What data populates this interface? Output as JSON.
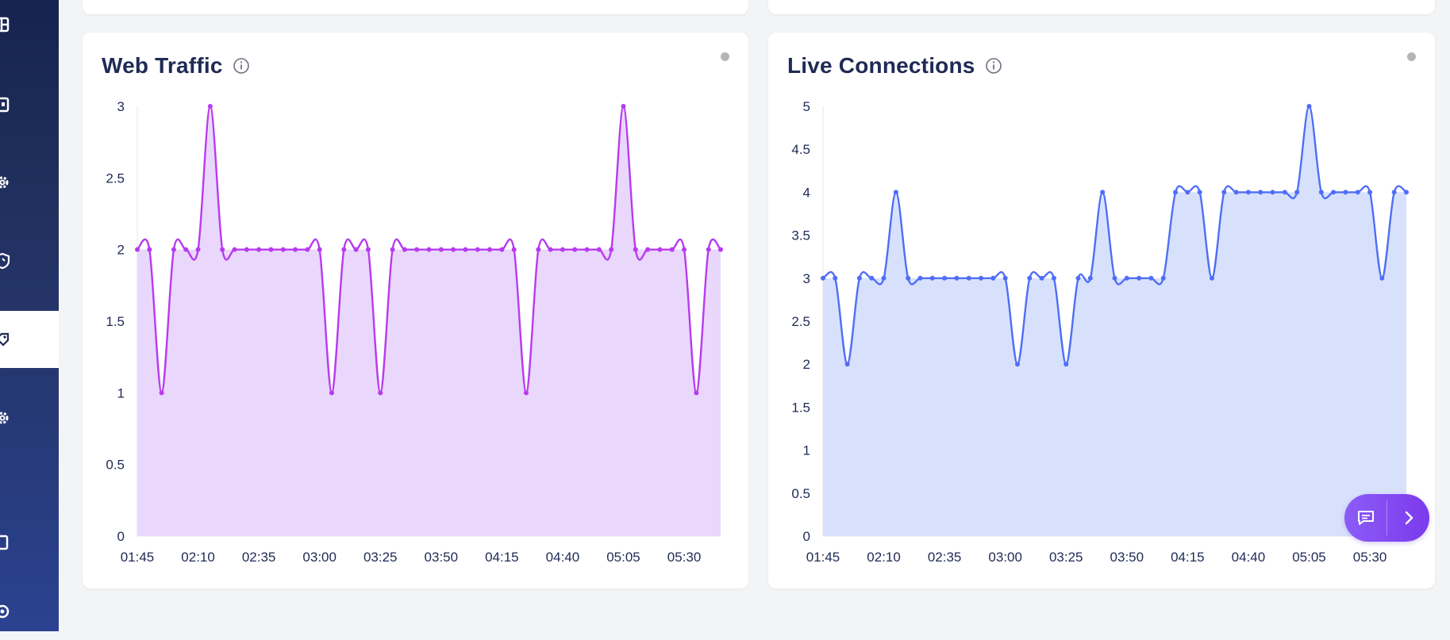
{
  "sidebar": {
    "items": [
      {
        "icon": "grid-icon",
        "active": false
      },
      {
        "icon": "building-icon",
        "active": false
      },
      {
        "icon": "gear-icon",
        "active": false
      },
      {
        "icon": "shield-icon",
        "active": false
      },
      {
        "icon": "tag-icon",
        "active": true
      },
      {
        "icon": "settings-icon",
        "active": false
      },
      {
        "icon": "device-icon",
        "active": false
      },
      {
        "icon": "support-icon",
        "active": false
      }
    ]
  },
  "cards": [
    {
      "id": "web-traffic",
      "title": "Web Traffic",
      "info_icon": "info-icon",
      "chart_data": {
        "type": "area",
        "title": "Web Traffic",
        "xlabel": "",
        "ylabel": "",
        "color": "#b73bef",
        "fill": "#ead7fc",
        "ylim": [
          0,
          3
        ],
        "yticks": [
          "0",
          "0.5",
          "1",
          "1.5",
          "2",
          "2.5",
          "3"
        ],
        "xticks": [
          "01:45",
          "02:10",
          "02:35",
          "03:00",
          "03:25",
          "03:50",
          "04:15",
          "04:40",
          "05:05",
          "05:30"
        ],
        "xstep_minutes": 5,
        "series": [
          {
            "values": [
              2,
              2,
              1,
              2,
              2,
              2,
              3,
              2,
              2,
              2,
              2,
              2,
              2,
              2,
              2,
              2,
              1,
              2,
              2,
              2,
              1,
              2,
              2,
              2,
              2,
              2,
              2,
              2,
              2,
              2,
              2,
              2,
              1,
              2,
              2,
              2,
              2,
              2,
              2,
              2,
              3,
              2,
              2,
              2,
              2,
              2,
              1,
              2,
              2
            ]
          }
        ]
      }
    },
    {
      "id": "live-connections",
      "title": "Live Connections",
      "info_icon": "info-icon",
      "chart_data": {
        "type": "area",
        "title": "Live Connections",
        "xlabel": "",
        "ylabel": "",
        "color": "#4f6ef7",
        "fill": "#d8e1fc",
        "ylim": [
          0,
          5
        ],
        "yticks": [
          "0",
          "0.5",
          "1",
          "1.5",
          "2",
          "2.5",
          "3",
          "3.5",
          "4",
          "4.5",
          "5"
        ],
        "xticks": [
          "01:45",
          "02:10",
          "02:35",
          "03:00",
          "03:25",
          "03:50",
          "04:15",
          "04:40",
          "05:05",
          "05:30"
        ],
        "xstep_minutes": 5,
        "series": [
          {
            "values": [
              3,
              3,
              2,
              3,
              3,
              3,
              4,
              3,
              3,
              3,
              3,
              3,
              3,
              3,
              3,
              3,
              2,
              3,
              3,
              3,
              2,
              3,
              3,
              4,
              3,
              3,
              3,
              3,
              3,
              4,
              4,
              4,
              3,
              4,
              4,
              4,
              4,
              4,
              4,
              4,
              5,
              4,
              4,
              4,
              4,
              4,
              3,
              4,
              4
            ]
          }
        ]
      }
    }
  ],
  "fab": {
    "chat_icon": "chat-icon",
    "next_icon": "chevron-right-icon"
  }
}
